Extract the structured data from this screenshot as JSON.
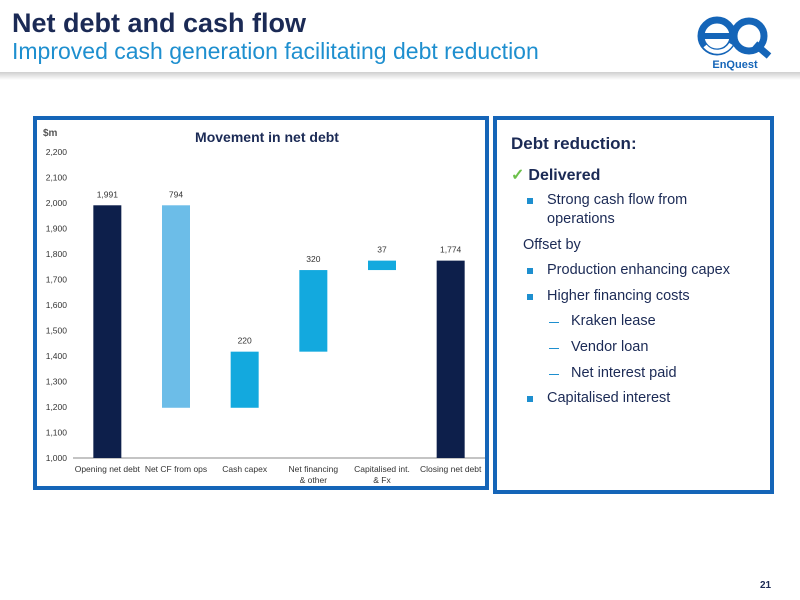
{
  "header": {
    "title": "Net debt and cash flow",
    "subtitle": "Improved cash generation facilitating debt reduction"
  },
  "logo": {
    "text": "EnQuest",
    "brand_color": "#1565b8"
  },
  "chart_data": {
    "type": "bar",
    "title": "Movement in net debt",
    "ylabel": "$m",
    "ylim": [
      1000,
      2200
    ],
    "ytick_step": 100,
    "grid": false,
    "categories": [
      "Opening net debt",
      "Net CF from ops",
      "Cash capex",
      "Net financing & other",
      "Capitalised int. & Fx",
      "Closing net debt"
    ],
    "bars": [
      {
        "label": "1,991",
        "bottom": 1000,
        "top": 1991,
        "color": "#0d1f4b"
      },
      {
        "label": "794",
        "bottom": 1197,
        "top": 1991,
        "color": "#6cbde8"
      },
      {
        "label": "220",
        "bottom": 1197,
        "top": 1417,
        "color": "#13a9de"
      },
      {
        "label": "320",
        "bottom": 1417,
        "top": 1737,
        "color": "#13a9de"
      },
      {
        "label": "37",
        "bottom": 1737,
        "top": 1774,
        "color": "#13a9de"
      },
      {
        "label": "1,774",
        "bottom": 1000,
        "top": 1774,
        "color": "#0d1f4b"
      }
    ]
  },
  "panel": {
    "title": "Debt reduction:",
    "check": "✓",
    "delivered": "Delivered",
    "bullet1": "Strong cash flow from operations",
    "offset": "Offset by",
    "bullet2": "Production enhancing capex",
    "bullet3": "Higher financing costs",
    "sub1": "Kraken lease",
    "sub2": "Vendor loan",
    "sub3": "Net interest paid",
    "bullet4": "Capitalised interest"
  },
  "colors": {
    "navy": "#1b2a55",
    "accent_blue": "#1e8fcf",
    "frame_blue": "#1565b8",
    "check_green": "#6cc04a"
  },
  "page_number": "21"
}
